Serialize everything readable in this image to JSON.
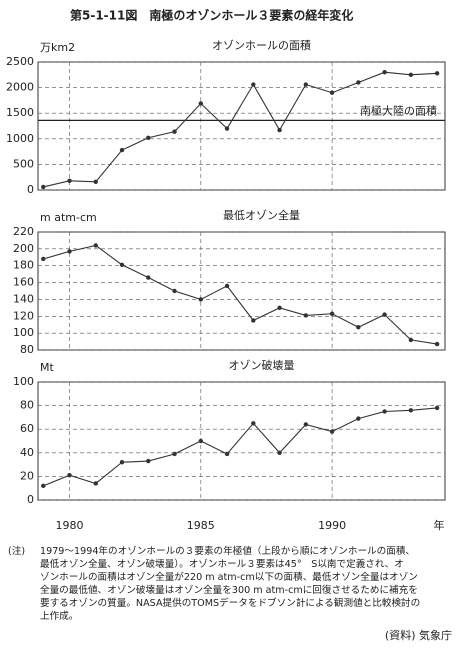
{
  "title": "第5-1-11図　南極のオゾンホール３要素の経年変化",
  "chart_data": [
    {
      "type": "line",
      "title": "オゾンホールの面積",
      "y_label": "万km2",
      "x": [
        1979,
        1980,
        1981,
        1982,
        1983,
        1984,
        1985,
        1986,
        1987,
        1988,
        1989,
        1990,
        1991,
        1992,
        1993,
        1994
      ],
      "series": [
        {
          "color": "#333333",
          "values": [
            60,
            180,
            160,
            780,
            1020,
            1140,
            1690,
            1200,
            2060,
            1170,
            2060,
            1900,
            2100,
            2300,
            2250,
            2280
          ]
        }
      ],
      "xlim": [
        1978.8,
        1994.3
      ],
      "xticks": [
        1980,
        1985,
        1990
      ],
      "ylim": [
        0,
        2500
      ],
      "yticks": [
        0,
        500,
        1000,
        1500,
        2000,
        2500
      ],
      "grid": true,
      "reference": {
        "value": 1360,
        "label": "南極大陸の面積"
      }
    },
    {
      "type": "line",
      "title": "最低オゾン全量",
      "y_label": "m atm-cm",
      "x": [
        1979,
        1980,
        1981,
        1982,
        1983,
        1984,
        1985,
        1986,
        1987,
        1988,
        1989,
        1990,
        1991,
        1992,
        1993,
        1994
      ],
      "series": [
        {
          "color": "#333333",
          "values": [
            188,
            197,
            204,
            181,
            166,
            150,
            140,
            156,
            115,
            130,
            121,
            123,
            107,
            122,
            92,
            87
          ]
        }
      ],
      "xlim": [
        1978.8,
        1994.3
      ],
      "xticks": [
        1980,
        1985,
        1990
      ],
      "ylim": [
        80,
        220
      ],
      "yticks": [
        80,
        100,
        120,
        140,
        160,
        180,
        200,
        220
      ],
      "grid": true
    },
    {
      "type": "line",
      "title": "オゾン破壊量",
      "y_label": "Mt",
      "x_label": "年",
      "x": [
        1979,
        1980,
        1981,
        1982,
        1983,
        1984,
        1985,
        1986,
        1987,
        1988,
        1989,
        1990,
        1991,
        1992,
        1993,
        1994
      ],
      "series": [
        {
          "color": "#333333",
          "values": [
            12,
            21,
            14,
            32,
            33,
            39,
            50,
            39,
            65,
            40,
            64,
            58,
            69,
            75,
            76,
            78
          ]
        }
      ],
      "xlim": [
        1978.8,
        1994.3
      ],
      "xticks": [
        1980,
        1985,
        1990
      ],
      "ylim": [
        0,
        100
      ],
      "yticks": [
        0,
        20,
        40,
        60,
        80,
        100
      ],
      "grid": true
    }
  ],
  "note": {
    "label": "(注)",
    "lines": [
      "1979～1994年のオゾンホールの３要素の年極値（上段から順にオゾンホールの面積、",
      "最低オゾン全量、オゾン破壊量）。オゾンホール３要素は45°　S以南で定義され、オ",
      "ゾンホールの面積はオゾン全量が220 m atm-cm以下の面積、最低オゾン全量はオゾン",
      "全量の最低値、オゾン破壊量はオゾン全量を300 m atm-cmに回復させるために補充を",
      "要するオゾンの質量。NASA提供のTOMSデータをドブソン計による観測値と比較検討の",
      "上作成。"
    ]
  },
  "source": "(資料) 気象庁"
}
